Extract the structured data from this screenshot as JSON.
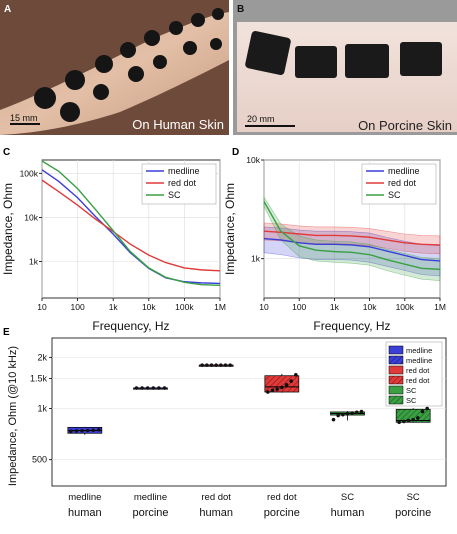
{
  "colors": {
    "medline": "#3b3fd8",
    "red_dot": "#e03a3a",
    "sc": "#3aa043",
    "axis": "#000000"
  },
  "photos": {
    "A": {
      "label": "A",
      "scale": "15 mm",
      "caption": "On Human Skin"
    },
    "B": {
      "label": "B",
      "scale": "20 mm",
      "caption": "On Porcine Skin"
    }
  },
  "chart_data": [
    {
      "panel": "C",
      "type": "line",
      "xscale": "log",
      "yscale": "log",
      "xlabel": "Frequency, Hz",
      "ylabel": "Impedance, Ohm",
      "xlim": [
        10,
        1000000
      ],
      "ylim": [
        150,
        200000
      ],
      "xticks": [
        "10",
        "100",
        "1k",
        "10k",
        "100k",
        "1M"
      ],
      "yticks": [
        "1k",
        "10k",
        "100k"
      ],
      "x": [
        10,
        30,
        100,
        300,
        1000,
        3000,
        10000,
        30000,
        100000,
        300000,
        1000000
      ],
      "legend_position": "top-right",
      "series": [
        {
          "name": "medline",
          "values": [
            120000,
            65000,
            28000,
            11000,
            4200,
            1600,
            700,
            430,
            350,
            330,
            320
          ]
        },
        {
          "name": "red dot",
          "values": [
            70000,
            38000,
            19000,
            9500,
            4800,
            2500,
            1400,
            950,
            720,
            650,
            620
          ]
        },
        {
          "name": "SC",
          "values": [
            190000,
            110000,
            45000,
            16000,
            5000,
            1700,
            720,
            440,
            340,
            300,
            290
          ]
        }
      ]
    },
    {
      "panel": "D",
      "type": "line",
      "xscale": "log",
      "yscale": "log",
      "xlabel": "Frequency, Hz",
      "ylabel": "Impedance, Ohm",
      "xlim": [
        10,
        1000000
      ],
      "ylim": [
        400,
        10000
      ],
      "xticks": [
        "10",
        "100",
        "1k",
        "10k",
        "100k",
        "1M"
      ],
      "yticks": [
        "1k",
        "10k"
      ],
      "x": [
        10,
        30,
        100,
        300,
        1000,
        3000,
        10000,
        30000,
        100000,
        300000,
        1000000
      ],
      "legend_position": "top-right",
      "series": [
        {
          "name": "medline",
          "values": [
            1600,
            1550,
            1450,
            1400,
            1400,
            1380,
            1320,
            1200,
            1080,
            980,
            950
          ],
          "band": [
            [
              1150,
              2100
            ],
            [
              1100,
              2050
            ],
            [
              1020,
              1950
            ],
            [
              980,
              1900
            ],
            [
              980,
              1900
            ],
            [
              970,
              1880
            ],
            [
              920,
              1820
            ],
            [
              840,
              1650
            ],
            [
              760,
              1500
            ],
            [
              690,
              1400
            ],
            [
              670,
              1350
            ]
          ]
        },
        {
          "name": "red dot",
          "values": [
            1900,
            1850,
            1780,
            1720,
            1720,
            1700,
            1650,
            1550,
            1450,
            1400,
            1380
          ],
          "band": [
            [
              1550,
              2300
            ],
            [
              1520,
              2250
            ],
            [
              1460,
              2150
            ],
            [
              1420,
              2100
            ],
            [
              1420,
              2100
            ],
            [
              1400,
              2080
            ],
            [
              1360,
              2020
            ],
            [
              1280,
              1900
            ],
            [
              1190,
              1780
            ],
            [
              1140,
              1720
            ],
            [
              1120,
              1700
            ]
          ]
        },
        {
          "name": "SC",
          "values": [
            3800,
            1900,
            1350,
            1220,
            1180,
            1160,
            1100,
            980,
            880,
            800,
            780
          ],
          "band": [
            [
              3400,
              4200
            ],
            [
              1550,
              2250
            ],
            [
              1050,
              1700
            ],
            [
              950,
              1550
            ],
            [
              920,
              1500
            ],
            [
              900,
              1480
            ],
            [
              860,
              1400
            ],
            [
              760,
              1250
            ],
            [
              680,
              1130
            ],
            [
              620,
              1030
            ],
            [
              600,
              1000
            ]
          ]
        }
      ]
    },
    {
      "panel": "E",
      "type": "box",
      "ylabel": "Impedance, Ohm (@10 kHz)",
      "ylim": [
        350,
        2600
      ],
      "yscale": "log",
      "yticks": [
        "500",
        "1k",
        "1.5k",
        "2k"
      ],
      "legend_position": "top-right",
      "legend": [
        "medline",
        "medline",
        "red dot",
        "red dot",
        "SC",
        "SC"
      ],
      "categories": [
        {
          "name": "medline",
          "sub": "human",
          "points": [
            735,
            738,
            740,
            742,
            745,
            750
          ],
          "q1": 715,
          "q3": 775,
          "median": 742,
          "min": 700,
          "max": 780,
          "hatched": false
        },
        {
          "name": "medline",
          "sub": "porcine",
          "points": [
            1320,
            1320,
            1320,
            1320,
            1320,
            1320
          ],
          "q1": 1320,
          "q3": 1320,
          "median": 1320,
          "min": 1320,
          "max": 1320,
          "hatched": true
        },
        {
          "name": "red dot",
          "sub": "human",
          "points": [
            1800,
            1800,
            1800,
            1800,
            1800,
            1800,
            1800
          ],
          "q1": 1800,
          "q3": 1800,
          "median": 1800,
          "min": 1800,
          "max": 1800,
          "hatched": false
        },
        {
          "name": "red dot",
          "sub": "porcine",
          "points": [
            1250,
            1280,
            1300,
            1330,
            1380,
            1450,
            1580
          ],
          "q1": 1250,
          "q3": 1560,
          "median": 1340,
          "min": 1240,
          "max": 1600,
          "hatched": true
        },
        {
          "name": "SC",
          "sub": "human",
          "points": [
            860,
            910,
            920,
            930,
            940,
            950,
            960
          ],
          "q1": 915,
          "q3": 955,
          "median": 935,
          "min": 850,
          "max": 965,
          "hatched": false
        },
        {
          "name": "SC",
          "sub": "porcine",
          "points": [
            830,
            840,
            850,
            860,
            880,
            960,
            1000
          ],
          "q1": 830,
          "q3": 990,
          "median": 850,
          "min": 825,
          "max": 1005,
          "hatched": true
        }
      ]
    }
  ]
}
